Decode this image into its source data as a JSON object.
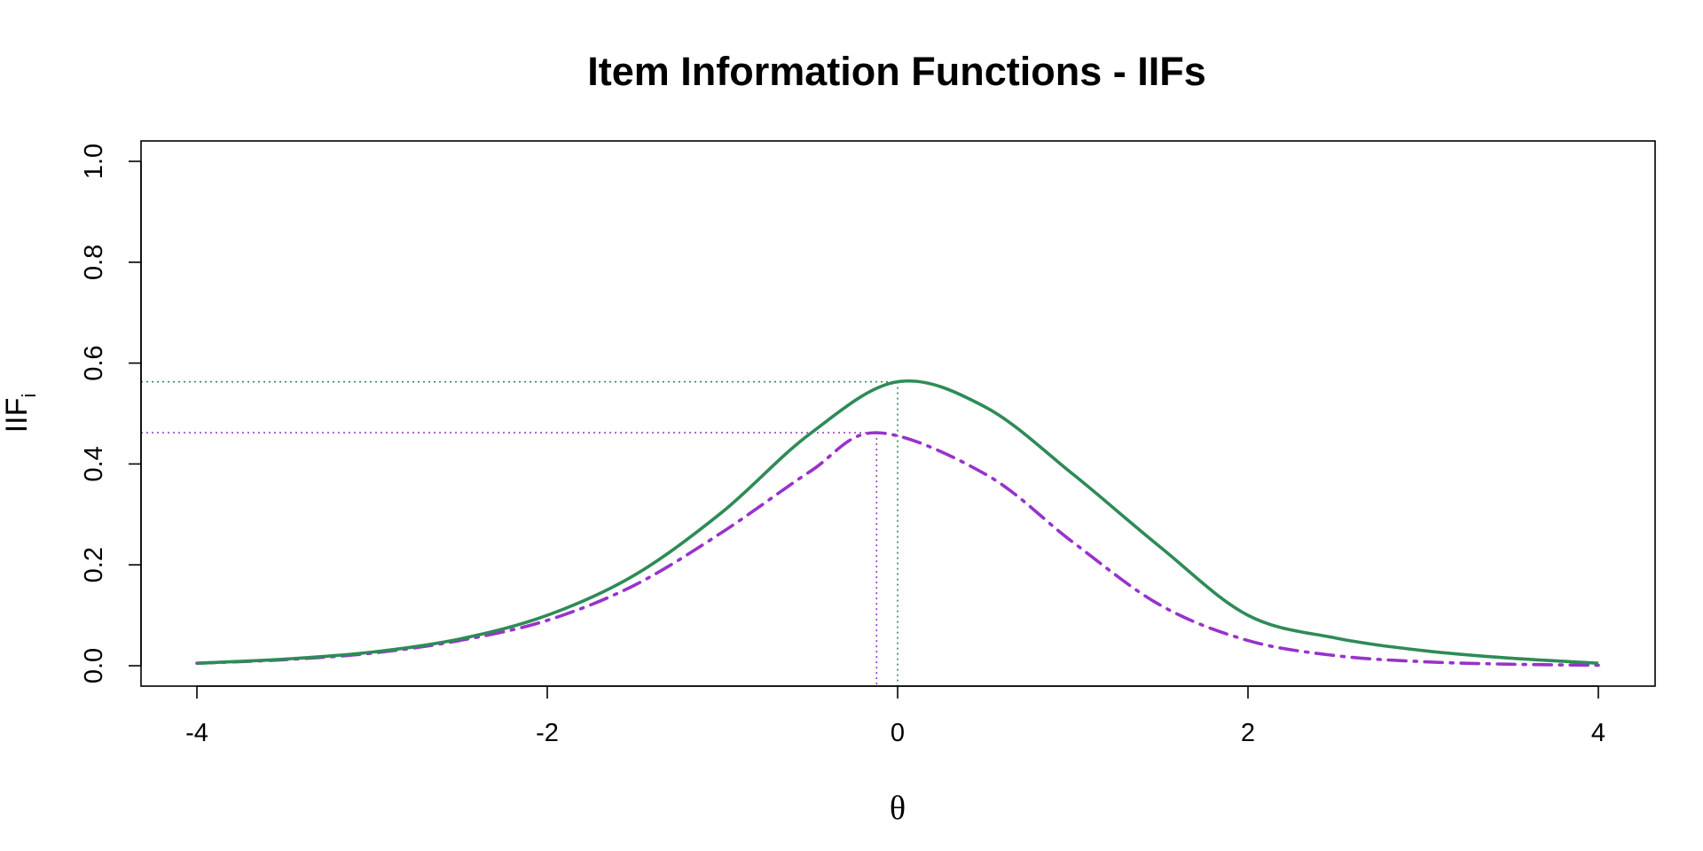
{
  "chart_data": {
    "type": "line",
    "title": "Item Information Functions - IIFs",
    "xlabel": "θ",
    "ylabel": {
      "main": "IIF",
      "sub": "i"
    },
    "xlim": [
      -4,
      4
    ],
    "ylim": [
      0,
      1
    ],
    "x_ticks": [
      -4,
      -2,
      0,
      2,
      4
    ],
    "x_tick_labels": [
      "-4",
      "-2",
      "0",
      "2",
      "4"
    ],
    "y_ticks": [
      0,
      0.2,
      0.4,
      0.6,
      0.8,
      1
    ],
    "y_tick_labels": [
      "0.0",
      "0.2",
      "0.4",
      "0.6",
      "0.8",
      "1.0"
    ],
    "grid": false,
    "legend": "none",
    "series": [
      {
        "line_style": "solid",
        "color": "#2e8b57",
        "x": [
          -4,
          -3.5,
          -3,
          -2.5,
          -2,
          -1.5,
          -1,
          -0.5,
          0,
          0.5,
          1,
          1.5,
          2,
          2.5,
          3,
          3.5,
          4
        ],
        "values": [
          0.005,
          0.013,
          0.027,
          0.053,
          0.1,
          0.18,
          0.305,
          0.46,
          0.563,
          0.513,
          0.38,
          0.235,
          0.1,
          0.055,
          0.03,
          0.015,
          0.005
        ],
        "peak": {
          "x": 0.0,
          "y": 0.563
        }
      },
      {
        "line_style": "dashdot",
        "color": "#9932cc",
        "x": [
          -4,
          -3.5,
          -3,
          -2.5,
          -2,
          -1.5,
          -1,
          -0.5,
          -0.12,
          0.5,
          1,
          1.5,
          2,
          2.5,
          3,
          3.5,
          4
        ],
        "values": [
          0.005,
          0.012,
          0.025,
          0.05,
          0.09,
          0.16,
          0.265,
          0.385,
          0.462,
          0.38,
          0.245,
          0.12,
          0.05,
          0.02,
          0.008,
          0.003,
          0.001
        ],
        "peak": {
          "x": -0.12,
          "y": 0.462
        }
      }
    ]
  }
}
